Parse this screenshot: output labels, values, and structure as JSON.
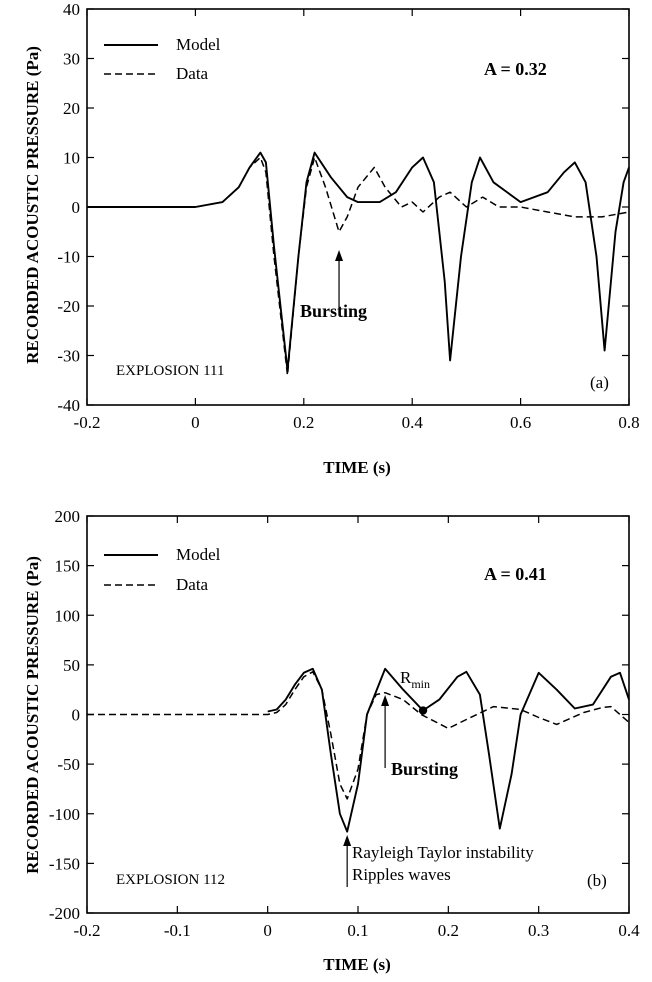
{
  "chart_data": [
    {
      "type": "line",
      "xlabel": "TIME (s)",
      "ylabel": "RECORDED ACOUSTIC PRESSURE (Pa)",
      "xlim": [
        -0.2,
        0.8
      ],
      "ylim": [
        -40,
        40
      ],
      "xticks": [
        "-0.2",
        "0",
        "0.2",
        "0.4",
        "0.6",
        "0.8"
      ],
      "yticks": [
        "-40",
        "-30",
        "-20",
        "-10",
        "0",
        "10",
        "20",
        "30",
        "40"
      ],
      "legend": {
        "position": "top-left",
        "entries": [
          "Model",
          "Data"
        ]
      },
      "annotations": {
        "param": "A = 0.32",
        "event": "Bursting",
        "event_x": 0.265,
        "explosion": "EXPLOSION 111",
        "panel": "(a)"
      },
      "series": [
        {
          "name": "Model",
          "style": "solid",
          "x": [
            -0.2,
            0.0,
            0.05,
            0.08,
            0.1,
            0.12,
            0.13,
            0.145,
            0.17,
            0.19,
            0.205,
            0.22,
            0.25,
            0.28,
            0.3,
            0.34,
            0.37,
            0.4,
            0.42,
            0.44,
            0.46,
            0.47,
            0.49,
            0.51,
            0.525,
            0.55,
            0.6,
            0.65,
            0.68,
            0.7,
            0.72,
            0.74,
            0.755,
            0.775,
            0.79,
            0.8
          ],
          "y": [
            0,
            0,
            1,
            4,
            8,
            11,
            9,
            -8,
            -33,
            -10,
            5,
            11,
            6,
            2,
            1,
            1,
            3,
            8,
            10,
            5,
            -15,
            -31,
            -10,
            5,
            10,
            5,
            1,
            3,
            7,
            9,
            5,
            -10,
            -29,
            -5,
            5,
            8
          ]
        },
        {
          "name": "Data",
          "style": "dashed",
          "x": [
            -0.2,
            0.0,
            0.05,
            0.08,
            0.1,
            0.12,
            0.13,
            0.145,
            0.17,
            0.19,
            0.205,
            0.22,
            0.24,
            0.265,
            0.28,
            0.3,
            0.33,
            0.35,
            0.38,
            0.4,
            0.42,
            0.45,
            0.47,
            0.5,
            0.53,
            0.56,
            0.6,
            0.65,
            0.7,
            0.75,
            0.8
          ],
          "y": [
            0,
            0,
            1,
            4,
            8,
            10,
            7,
            -10,
            -34,
            -10,
            4,
            10,
            4,
            -5,
            -2,
            4,
            8,
            4,
            0,
            1,
            -1,
            2,
            3,
            0,
            2,
            0,
            0,
            -1,
            -2,
            -2,
            -1
          ]
        }
      ]
    },
    {
      "type": "line",
      "xlabel": "TIME (s)",
      "ylabel": "RECORDED ACOUSTIC PRESSURE (Pa)",
      "xlim": [
        -0.2,
        0.4
      ],
      "ylim": [
        -200,
        200
      ],
      "xticks": [
        "-0.2",
        "-0.1",
        "0",
        "0.1",
        "0.2",
        "0.3",
        "0.4"
      ],
      "yticks": [
        "-200",
        "-150",
        "-100",
        "-50",
        "0",
        "50",
        "100",
        "150",
        "200"
      ],
      "legend": {
        "position": "top-left",
        "entries": [
          "Model",
          "Data"
        ]
      },
      "annotations": {
        "param": "A = 0.41",
        "rmin_main": "R",
        "rmin_sub": "min",
        "rmin_x": 0.172,
        "rmin_y": 4,
        "event": "Bursting",
        "event_x": 0.13,
        "instability_line1": "Rayleigh Taylor instability",
        "instability_line2": "Ripples waves",
        "instability_x": 0.088,
        "explosion": "EXPLOSION 112",
        "panel": "(b)"
      },
      "series": [
        {
          "name": "Model",
          "style": "solid",
          "x": [
            0.0,
            0.01,
            0.02,
            0.03,
            0.04,
            0.05,
            0.06,
            0.07,
            0.08,
            0.088,
            0.1,
            0.11,
            0.13,
            0.15,
            0.172,
            0.19,
            0.21,
            0.22,
            0.235,
            0.245,
            0.257,
            0.27,
            0.28,
            0.3,
            0.32,
            0.34,
            0.36,
            0.38,
            0.39,
            0.4
          ],
          "y": [
            3,
            5,
            15,
            30,
            42,
            46,
            25,
            -40,
            -100,
            -118,
            -70,
            0,
            46,
            25,
            4,
            15,
            38,
            43,
            20,
            -40,
            -115,
            -60,
            0,
            42,
            25,
            6,
            10,
            38,
            42,
            15
          ]
        },
        {
          "name": "Data",
          "style": "dashed",
          "x": [
            -0.2,
            0.0,
            0.01,
            0.02,
            0.03,
            0.04,
            0.05,
            0.06,
            0.07,
            0.08,
            0.088,
            0.1,
            0.11,
            0.12,
            0.13,
            0.15,
            0.17,
            0.2,
            0.22,
            0.25,
            0.28,
            0.3,
            0.32,
            0.35,
            0.37,
            0.38,
            0.39,
            0.4
          ],
          "y": [
            0,
            0,
            2,
            10,
            25,
            38,
            43,
            25,
            -20,
            -70,
            -85,
            -55,
            0,
            20,
            22,
            15,
            0,
            -14,
            -5,
            8,
            5,
            -3,
            -10,
            2,
            7,
            8,
            0,
            -8
          ]
        }
      ]
    }
  ]
}
